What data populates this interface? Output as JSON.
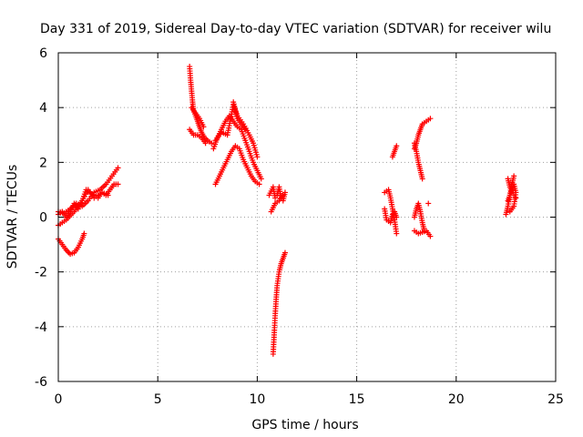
{
  "chart_data": {
    "type": "scatter",
    "title": "Day 331 of 2019, Sidereal Day-to-day VTEC variation (SDTVAR) for receiver wilu",
    "xlabel": "GPS time / hours",
    "ylabel": "SDTVAR / TECUs",
    "xlim": [
      0,
      25
    ],
    "ylim": [
      -6,
      6
    ],
    "xticks": [
      0,
      5,
      10,
      15,
      20,
      25
    ],
    "yticks": [
      -6,
      -4,
      -2,
      0,
      2,
      4,
      6
    ],
    "grid": true,
    "marker": "+",
    "series": [
      {
        "name": "SDTVAR",
        "color": "#ff0000",
        "segments": [
          [
            [
              0.0,
              0.1
            ],
            [
              0.2,
              0.2
            ],
            [
              0.4,
              0.0
            ],
            [
              0.6,
              0.2
            ],
            [
              0.8,
              0.5
            ],
            [
              1.0,
              0.3
            ],
            [
              1.2,
              0.6
            ],
            [
              1.4,
              1.0
            ],
            [
              1.6,
              0.9
            ],
            [
              1.8,
              0.8
            ],
            [
              2.0,
              0.7
            ],
            [
              2.2,
              0.9
            ],
            [
              2.4,
              0.8
            ],
            [
              2.6,
              1.0
            ],
            [
              2.8,
              1.2
            ],
            [
              3.0,
              1.2
            ]
          ],
          [
            [
              0.0,
              -0.8
            ],
            [
              0.2,
              -1.0
            ],
            [
              0.4,
              -1.2
            ],
            [
              0.6,
              -1.35
            ],
            [
              0.8,
              -1.3
            ],
            [
              1.0,
              -1.1
            ],
            [
              1.2,
              -0.8
            ],
            [
              1.3,
              -0.6
            ]
          ],
          [
            [
              0.0,
              0.2
            ],
            [
              0.3,
              0.15
            ],
            [
              0.6,
              0.3
            ],
            [
              0.9,
              0.5
            ],
            [
              1.2,
              0.4
            ],
            [
              1.5,
              0.6
            ],
            [
              1.8,
              0.9
            ],
            [
              2.1,
              1.0
            ],
            [
              2.4,
              1.2
            ],
            [
              2.7,
              1.5
            ],
            [
              3.0,
              1.8
            ]
          ],
          [
            [
              0.0,
              -0.3
            ],
            [
              0.4,
              -0.1
            ],
            [
              0.8,
              0.2
            ],
            [
              1.2,
              0.6
            ],
            [
              1.5,
              1.0
            ],
            [
              1.8,
              0.7
            ],
            [
              2.2,
              0.9
            ],
            [
              2.5,
              0.8
            ]
          ],
          [
            [
              6.6,
              5.5
            ],
            [
              6.65,
              5.0
            ],
            [
              6.7,
              4.6
            ],
            [
              6.75,
              4.2
            ],
            [
              6.8,
              3.9
            ],
            [
              6.9,
              3.7
            ],
            [
              7.0,
              3.5
            ],
            [
              7.1,
              3.3
            ],
            [
              7.2,
              3.1
            ],
            [
              7.35,
              2.9
            ],
            [
              7.5,
              2.8
            ],
            [
              7.7,
              2.7
            ]
          ],
          [
            [
              6.6,
              3.2
            ],
            [
              6.8,
              3.0
            ],
            [
              7.0,
              3.0
            ],
            [
              7.2,
              2.9
            ],
            [
              7.4,
              2.7
            ]
          ],
          [
            [
              6.7,
              4.0
            ],
            [
              6.9,
              3.8
            ],
            [
              7.1,
              3.6
            ],
            [
              7.3,
              3.3
            ]
          ],
          [
            [
              7.8,
              2.5
            ],
            [
              8.0,
              2.9
            ],
            [
              8.2,
              3.2
            ],
            [
              8.4,
              3.5
            ],
            [
              8.6,
              3.7
            ],
            [
              8.8,
              3.5
            ],
            [
              9.0,
              3.3
            ],
            [
              9.2,
              3.2
            ],
            [
              9.4,
              2.8
            ],
            [
              9.6,
              2.4
            ],
            [
              9.8,
              2.0
            ],
            [
              10.0,
              1.7
            ],
            [
              10.2,
              1.4
            ]
          ],
          [
            [
              7.9,
              1.2
            ],
            [
              8.1,
              1.5
            ],
            [
              8.3,
              1.8
            ],
            [
              8.5,
              2.1
            ],
            [
              8.7,
              2.4
            ],
            [
              8.9,
              2.6
            ],
            [
              9.1,
              2.5
            ],
            [
              9.3,
              2.1
            ],
            [
              9.5,
              1.8
            ],
            [
              9.7,
              1.5
            ],
            [
              9.9,
              1.3
            ],
            [
              10.1,
              1.2
            ]
          ],
          [
            [
              7.9,
              2.8
            ],
            [
              8.2,
              3.1
            ],
            [
              8.5,
              3.0
            ],
            [
              8.8,
              4.1
            ],
            [
              9.0,
              3.7
            ],
            [
              9.3,
              3.4
            ],
            [
              9.6,
              3.0
            ],
            [
              9.8,
              2.7
            ],
            [
              10.0,
              2.2
            ]
          ],
          [
            [
              8.8,
              4.2
            ],
            [
              8.9,
              3.9
            ],
            [
              9.0,
              3.6
            ],
            [
              9.2,
              3.4
            ],
            [
              9.4,
              3.2
            ]
          ],
          [
            [
              10.6,
              0.8
            ],
            [
              10.8,
              1.1
            ],
            [
              10.9,
              0.7
            ],
            [
              11.0,
              0.8
            ],
            [
              11.1,
              1.1
            ],
            [
              11.2,
              0.7
            ],
            [
              11.3,
              0.6
            ],
            [
              11.4,
              0.9
            ]
          ],
          [
            [
              10.7,
              0.2
            ],
            [
              10.9,
              0.5
            ],
            [
              11.1,
              0.6
            ],
            [
              11.3,
              0.8
            ]
          ],
          [
            [
              10.8,
              -5.0
            ],
            [
              10.85,
              -4.3
            ],
            [
              10.9,
              -3.6
            ],
            [
              10.95,
              -3.0
            ],
            [
              11.0,
              -2.5
            ],
            [
              11.1,
              -2.0
            ],
            [
              11.2,
              -1.7
            ],
            [
              11.3,
              -1.5
            ],
            [
              11.4,
              -1.3
            ]
          ],
          [
            [
              16.4,
              0.9
            ],
            [
              16.6,
              1.0
            ],
            [
              16.7,
              0.7
            ],
            [
              16.8,
              0.3
            ],
            [
              16.9,
              -0.1
            ],
            [
              17.0,
              -0.6
            ]
          ],
          [
            [
              16.4,
              0.3
            ],
            [
              16.5,
              -0.1
            ],
            [
              16.7,
              -0.2
            ],
            [
              16.8,
              0.1
            ],
            [
              16.9,
              0.2
            ],
            [
              17.0,
              0.0
            ]
          ],
          [
            [
              16.8,
              2.2
            ],
            [
              16.9,
              2.4
            ],
            [
              17.0,
              2.6
            ]
          ],
          [
            [
              17.9,
              0.0
            ],
            [
              18.0,
              0.3
            ],
            [
              18.1,
              0.5
            ],
            [
              18.2,
              0.2
            ],
            [
              18.3,
              -0.2
            ],
            [
              18.4,
              -0.5
            ]
          ],
          [
            [
              17.9,
              -0.5
            ],
            [
              18.1,
              -0.6
            ],
            [
              18.3,
              -0.55
            ],
            [
              18.5,
              -0.5
            ],
            [
              18.7,
              -0.7
            ]
          ],
          [
            [
              17.9,
              2.7
            ],
            [
              18.0,
              2.4
            ],
            [
              18.1,
              2.0
            ],
            [
              18.2,
              1.7
            ],
            [
              18.3,
              1.4
            ]
          ],
          [
            [
              17.9,
              2.5
            ],
            [
              18.0,
              2.7
            ],
            [
              18.1,
              3.0
            ],
            [
              18.2,
              3.2
            ],
            [
              18.3,
              3.4
            ],
            [
              18.5,
              3.5
            ],
            [
              18.7,
              3.6
            ]
          ],
          [
            [
              18.6,
              0.5
            ]
          ],
          [
            [
              22.5,
              0.1
            ],
            [
              22.6,
              0.4
            ],
            [
              22.7,
              0.8
            ],
            [
              22.8,
              1.2
            ],
            [
              22.9,
              1.5
            ]
          ],
          [
            [
              22.6,
              1.4
            ],
            [
              22.7,
              1.1
            ],
            [
              22.8,
              0.9
            ],
            [
              22.9,
              0.8
            ],
            [
              23.0,
              0.7
            ]
          ],
          [
            [
              22.6,
              0.6
            ],
            [
              22.7,
              0.8
            ],
            [
              22.8,
              1.0
            ],
            [
              22.9,
              1.2
            ],
            [
              23.0,
              0.9
            ],
            [
              22.9,
              0.4
            ],
            [
              22.7,
              0.2
            ]
          ]
        ]
      }
    ]
  }
}
